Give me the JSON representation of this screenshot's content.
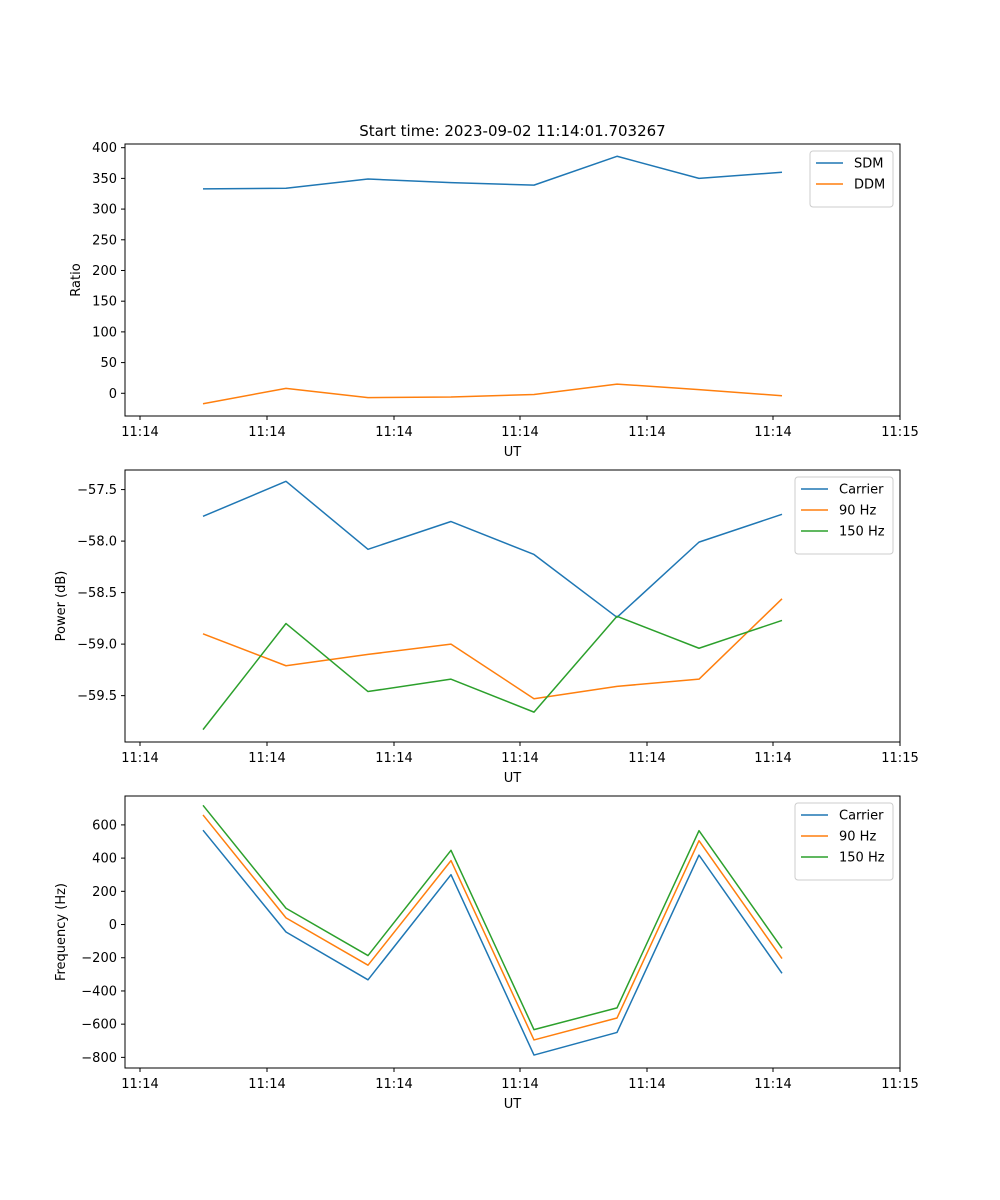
{
  "title": "Start time: 2023-09-02 11:14:01.703267",
  "colors": {
    "series1": "#1f77b4",
    "series2": "#ff7f0e",
    "series3": "#2ca02c"
  },
  "chart_data": [
    {
      "type": "line",
      "ylabel": "Ratio",
      "xlabel": "UT",
      "xticklabels": [
        "11:14",
        "11:14",
        "11:14",
        "11:14",
        "11:14",
        "11:14",
        "11:15"
      ],
      "yticks": [
        0,
        50,
        100,
        150,
        200,
        250,
        300,
        350,
        400
      ],
      "ylim": [
        -37,
        406
      ],
      "legend": "top-right",
      "x_index": [
        0,
        1,
        2,
        3,
        4,
        5,
        6,
        7
      ],
      "series": [
        {
          "name": "SDM",
          "values": [
            333,
            334,
            349,
            343,
            339,
            386,
            350,
            360
          ]
        },
        {
          "name": "DDM",
          "values": [
            -17,
            8,
            -7,
            -6,
            -2,
            15,
            6,
            -4
          ]
        }
      ]
    },
    {
      "type": "line",
      "ylabel": "Power (dB)",
      "xlabel": "UT",
      "xticklabels": [
        "11:14",
        "11:14",
        "11:14",
        "11:14",
        "11:14",
        "11:14",
        "11:15"
      ],
      "yticks": [
        -59.5,
        -59.0,
        -58.5,
        -58.0,
        -57.5
      ],
      "ytickformat": 1,
      "ylim": [
        -59.95,
        -57.31
      ],
      "legend": "top-right",
      "x_index": [
        0,
        1,
        2,
        3,
        4,
        5,
        6,
        7
      ],
      "series": [
        {
          "name": "Carrier",
          "values": [
            -57.76,
            -57.42,
            -58.08,
            -57.81,
            -58.13,
            -58.74,
            -58.01,
            -57.74
          ]
        },
        {
          "name": "90 Hz",
          "values": [
            -58.9,
            -59.21,
            -59.1,
            -59.0,
            -59.53,
            -59.41,
            -59.34,
            -58.56
          ]
        },
        {
          "name": "150 Hz",
          "values": [
            -59.83,
            -58.8,
            -59.46,
            -59.34,
            -59.66,
            -58.73,
            -59.04,
            -58.77
          ]
        }
      ]
    },
    {
      "type": "line",
      "ylabel": "Frequency (Hz)",
      "xlabel": "UT",
      "xticklabels": [
        "11:14",
        "11:14",
        "11:14",
        "11:14",
        "11:14",
        "11:14",
        "11:15"
      ],
      "yticks": [
        -800,
        -600,
        -400,
        -200,
        0,
        200,
        400,
        600
      ],
      "ylim": [
        -864,
        774
      ],
      "legend": "top-right",
      "x_index": [
        0,
        1,
        2,
        3,
        4,
        5,
        6,
        7
      ],
      "series": [
        {
          "name": "Carrier",
          "values": [
            568,
            -45,
            -333,
            300,
            -786,
            -650,
            418,
            -294
          ]
        },
        {
          "name": "90 Hz",
          "values": [
            660,
            40,
            -245,
            385,
            -695,
            -563,
            505,
            -205
          ]
        },
        {
          "name": "150 Hz",
          "values": [
            718,
            98,
            -187,
            447,
            -633,
            -502,
            565,
            -143
          ]
        }
      ]
    }
  ]
}
